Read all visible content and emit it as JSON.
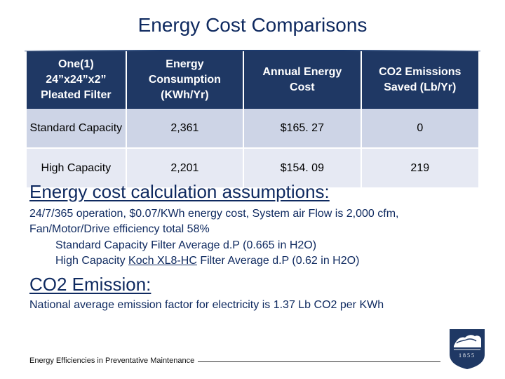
{
  "title": "Energy Cost Comparisons",
  "table": {
    "headers": [
      [
        "One(1)",
        "24”x24”x2”",
        "Pleated Filter"
      ],
      [
        "Energy",
        "Consumption",
        "(KWh/Yr)"
      ],
      [
        "Annual Energy",
        "Cost"
      ],
      [
        "CO2 Emissions",
        "Saved (Lb/Yr)"
      ]
    ],
    "rows": [
      [
        "Standard Capacity",
        "2,361",
        "$165. 27",
        "0"
      ],
      [
        "High Capacity",
        "2,201",
        "$154. 09",
        "219"
      ]
    ]
  },
  "assumptions": {
    "heading": "Energy cost calculation assumptions:",
    "line1": "24/7/365 operation, $0.07/KWh energy cost, System air Flow is 2,000 cfm,",
    "line2": "Fan/Motor/Drive efficiency total 58%",
    "line3": "Standard Capacity Filter Average d.P (0.665 in H2O)",
    "line4_pre": "High Capacity ",
    "line4_brand": "Koch XL8-HC",
    "line4_post": " Filter Average d.P (0.62 in H2O)"
  },
  "emission": {
    "heading": "CO2 Emission:",
    "text": "National average emission factor for electricity is 1.37 Lb CO2 per KWh"
  },
  "footer": {
    "text": "Energy Efficiencies in Preventative Maintenance",
    "logo_year": "1855"
  },
  "colors": {
    "title": "#0f2a60",
    "header_bg": "#1f3864",
    "row_dark": "#cdd4e6",
    "row_light": "#e6e9f3"
  }
}
